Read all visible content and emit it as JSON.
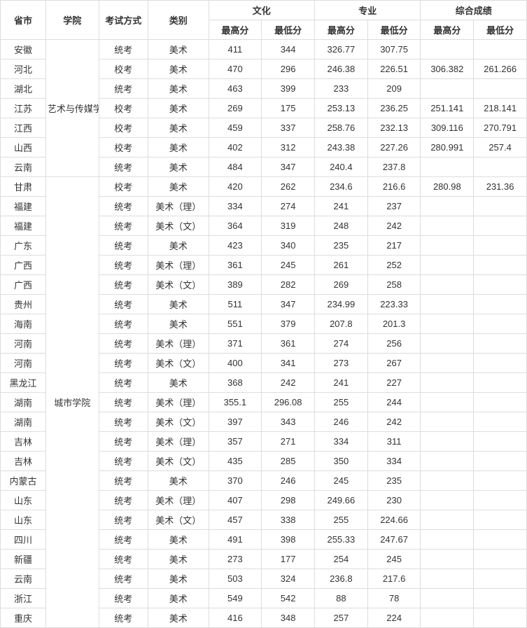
{
  "headers": {
    "province": "省市",
    "college": "学院",
    "examType": "考试方式",
    "category": "类别",
    "culture": "文化",
    "major": "专业",
    "composite": "综合成绩",
    "high": "最高分",
    "low": "最低分"
  },
  "college1": "艺术与传媒学院",
  "college2": "城市学院",
  "rows": [
    {
      "prov": "安徽",
      "exam": "统考",
      "cat": "美术",
      "ch": "411",
      "cl": "344",
      "mh": "326.77",
      "ml": "307.75",
      "sh": "",
      "sl": ""
    },
    {
      "prov": "河北",
      "exam": "校考",
      "cat": "美术",
      "ch": "470",
      "cl": "296",
      "mh": "246.38",
      "ml": "226.51",
      "sh": "306.382",
      "sl": "261.266"
    },
    {
      "prov": "湖北",
      "exam": "统考",
      "cat": "美术",
      "ch": "463",
      "cl": "399",
      "mh": "233",
      "ml": "209",
      "sh": "",
      "sl": ""
    },
    {
      "prov": "江苏",
      "exam": "校考",
      "cat": "美术",
      "ch": "269",
      "cl": "175",
      "mh": "253.13",
      "ml": "236.25",
      "sh": "251.141",
      "sl": "218.141"
    },
    {
      "prov": "江西",
      "exam": "校考",
      "cat": "美术",
      "ch": "459",
      "cl": "337",
      "mh": "258.76",
      "ml": "232.13",
      "sh": "309.116",
      "sl": "270.791"
    },
    {
      "prov": "山西",
      "exam": "校考",
      "cat": "美术",
      "ch": "402",
      "cl": "312",
      "mh": "243.38",
      "ml": "227.26",
      "sh": "280.991",
      "sl": "257.4"
    },
    {
      "prov": "云南",
      "exam": "统考",
      "cat": "美术",
      "ch": "484",
      "cl": "347",
      "mh": "240.4",
      "ml": "237.8",
      "sh": "",
      "sl": ""
    },
    {
      "prov": "甘肃",
      "exam": "校考",
      "cat": "美术",
      "ch": "420",
      "cl": "262",
      "mh": "234.6",
      "ml": "216.6",
      "sh": "280.98",
      "sl": "231.36"
    },
    {
      "prov": "福建",
      "exam": "统考",
      "cat": "美术（理）",
      "ch": "334",
      "cl": "274",
      "mh": "241",
      "ml": "237",
      "sh": "",
      "sl": ""
    },
    {
      "prov": "福建",
      "exam": "统考",
      "cat": "美术（文）",
      "ch": "364",
      "cl": "319",
      "mh": "248",
      "ml": "242",
      "sh": "",
      "sl": ""
    },
    {
      "prov": "广东",
      "exam": "统考",
      "cat": "美术",
      "ch": "423",
      "cl": "340",
      "mh": "235",
      "ml": "217",
      "sh": "",
      "sl": ""
    },
    {
      "prov": "广西",
      "exam": "统考",
      "cat": "美术（理）",
      "ch": "361",
      "cl": "245",
      "mh": "261",
      "ml": "252",
      "sh": "",
      "sl": ""
    },
    {
      "prov": "广西",
      "exam": "统考",
      "cat": "美术（文）",
      "ch": "389",
      "cl": "282",
      "mh": "269",
      "ml": "258",
      "sh": "",
      "sl": ""
    },
    {
      "prov": "贵州",
      "exam": "统考",
      "cat": "美术",
      "ch": "511",
      "cl": "347",
      "mh": "234.99",
      "ml": "223.33",
      "sh": "",
      "sl": ""
    },
    {
      "prov": "海南",
      "exam": "统考",
      "cat": "美术",
      "ch": "551",
      "cl": "379",
      "mh": "207.8",
      "ml": "201.3",
      "sh": "",
      "sl": ""
    },
    {
      "prov": "河南",
      "exam": "统考",
      "cat": "美术（理）",
      "ch": "371",
      "cl": "361",
      "mh": "274",
      "ml": "256",
      "sh": "",
      "sl": ""
    },
    {
      "prov": "河南",
      "exam": "统考",
      "cat": "美术（文）",
      "ch": "400",
      "cl": "341",
      "mh": "273",
      "ml": "267",
      "sh": "",
      "sl": ""
    },
    {
      "prov": "黑龙江",
      "exam": "统考",
      "cat": "美术",
      "ch": "368",
      "cl": "242",
      "mh": "241",
      "ml": "227",
      "sh": "",
      "sl": ""
    },
    {
      "prov": "湖南",
      "exam": "统考",
      "cat": "美术（理）",
      "ch": "355.1",
      "cl": "296.08",
      "mh": "255",
      "ml": "244",
      "sh": "",
      "sl": ""
    },
    {
      "prov": "湖南",
      "exam": "统考",
      "cat": "美术（文）",
      "ch": "397",
      "cl": "343",
      "mh": "246",
      "ml": "242",
      "sh": "",
      "sl": ""
    },
    {
      "prov": "吉林",
      "exam": "统考",
      "cat": "美术（理）",
      "ch": "357",
      "cl": "271",
      "mh": "334",
      "ml": "311",
      "sh": "",
      "sl": ""
    },
    {
      "prov": "吉林",
      "exam": "统考",
      "cat": "美术（文）",
      "ch": "435",
      "cl": "285",
      "mh": "350",
      "ml": "334",
      "sh": "",
      "sl": ""
    },
    {
      "prov": "内蒙古",
      "exam": "统考",
      "cat": "美术",
      "ch": "370",
      "cl": "246",
      "mh": "245",
      "ml": "235",
      "sh": "",
      "sl": ""
    },
    {
      "prov": "山东",
      "exam": "统考",
      "cat": "美术（理）",
      "ch": "407",
      "cl": "298",
      "mh": "249.66",
      "ml": "230",
      "sh": "",
      "sl": ""
    },
    {
      "prov": "山东",
      "exam": "统考",
      "cat": "美术（文）",
      "ch": "457",
      "cl": "338",
      "mh": "255",
      "ml": "224.66",
      "sh": "",
      "sl": ""
    },
    {
      "prov": "四川",
      "exam": "统考",
      "cat": "美术",
      "ch": "491",
      "cl": "398",
      "mh": "255.33",
      "ml": "247.67",
      "sh": "",
      "sl": ""
    },
    {
      "prov": "新疆",
      "exam": "统考",
      "cat": "美术",
      "ch": "273",
      "cl": "177",
      "mh": "254",
      "ml": "245",
      "sh": "",
      "sl": ""
    },
    {
      "prov": "云南",
      "exam": "统考",
      "cat": "美术",
      "ch": "503",
      "cl": "324",
      "mh": "236.8",
      "ml": "217.6",
      "sh": "",
      "sl": ""
    },
    {
      "prov": "浙江",
      "exam": "统考",
      "cat": "美术",
      "ch": "549",
      "cl": "542",
      "mh": "88",
      "ml": "78",
      "sh": "",
      "sl": ""
    },
    {
      "prov": "重庆",
      "exam": "统考",
      "cat": "美术",
      "ch": "416",
      "cl": "348",
      "mh": "257",
      "ml": "224",
      "sh": "",
      "sl": ""
    }
  ],
  "group1_size": 7,
  "group2_size": 23,
  "college2_label_row": 18
}
